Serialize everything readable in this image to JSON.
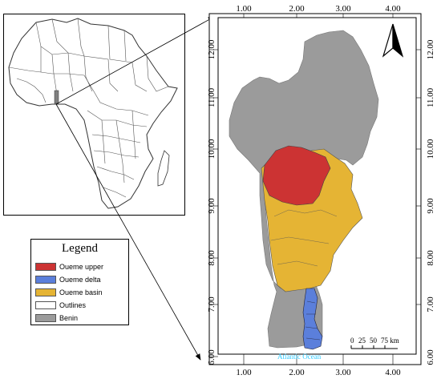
{
  "locator": {
    "highlight_color": "#808080"
  },
  "legend": {
    "title": "Legend",
    "items": [
      {
        "label": "Oueme upper",
        "color": "#cc3333"
      },
      {
        "label": "Oueme delta",
        "color": "#5b7fdb"
      },
      {
        "label": "Oueme basin",
        "color": "#e5b434"
      },
      {
        "label": "Outlines",
        "color": "#ffffff"
      },
      {
        "label": "Benin",
        "color": "#9b9b9b"
      }
    ]
  },
  "main_map": {
    "x_ticks": [
      "1.00",
      "2.00",
      "3.00",
      "4.00"
    ],
    "y_ticks": [
      "12.00",
      "11.00",
      "10.00",
      "9.00",
      "8.00",
      "7.00",
      "6.00"
    ],
    "ocean_label": "Atlantic Ocean",
    "ocean_label_color": "#33ccff",
    "scale_bar": {
      "labels": [
        "0",
        "25",
        "50",
        "75 km"
      ]
    },
    "north_arrow": "north-arrow-icon"
  }
}
